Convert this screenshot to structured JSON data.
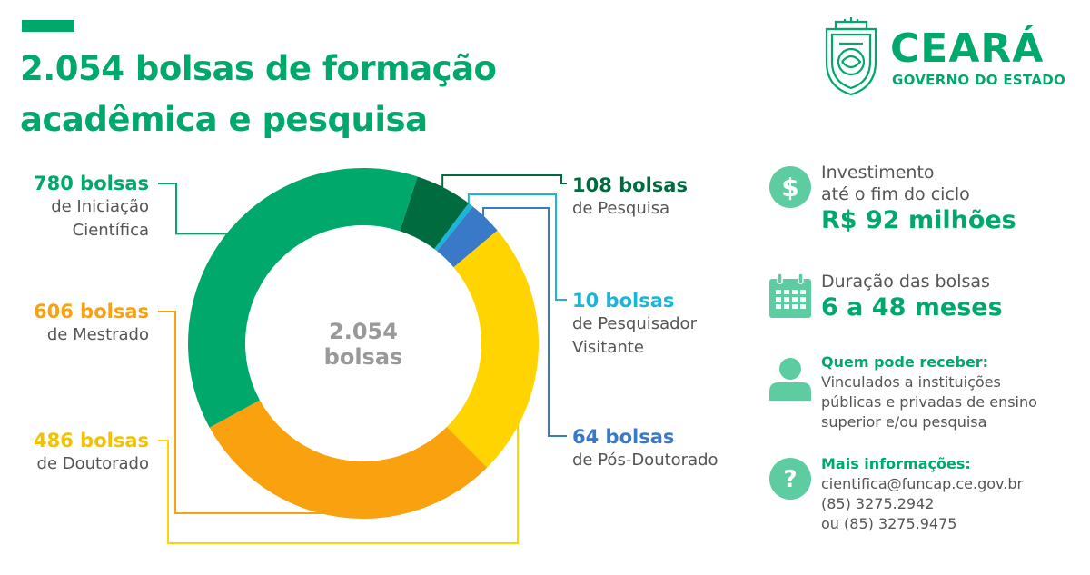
{
  "header": {
    "title_line1": "2.054 bolsas de formação",
    "title_line2": "acadêmica e pesquisa"
  },
  "brand": {
    "name": "CEARÁ",
    "subtitle": "GOVERNO DO ESTADO",
    "seal_icon": "state-coat-of-arms-icon"
  },
  "chart_data": {
    "type": "pie",
    "donut": true,
    "title": "2.054 bolsas de formação acadêmica e pesquisa",
    "center_label_value": "2.054",
    "center_label_unit": "bolsas",
    "total": 2054,
    "series": [
      {
        "count_label": "108 bolsas",
        "category": "de Pesquisa",
        "value": 108,
        "color": "#006B3F"
      },
      {
        "count_label": "10 bolsas",
        "category": "de Pesquisador Visitante",
        "value": 10,
        "color": "#1BB5D8"
      },
      {
        "count_label": "64 bolsas",
        "category": "de Pós-Doutorado",
        "value": 64,
        "color": "#3A78C8"
      },
      {
        "count_label": "486 bolsas",
        "category": "de Doutorado",
        "value": 486,
        "color": "#FFD400"
      },
      {
        "count_label": "606 bolsas",
        "category": "de Mestrado",
        "value": 606,
        "color": "#F9A10F"
      },
      {
        "count_label": "780 bolsas",
        "category": "de Iniciação Científica",
        "value": 780,
        "color": "#00A86B"
      }
    ]
  },
  "labels": {
    "iniciacao": {
      "count": "780 bolsas",
      "line1": "de Iniciação",
      "line2": "Científica"
    },
    "mestrado": {
      "count": "606 bolsas",
      "line1": "de Mestrado"
    },
    "doutorado": {
      "count": "486 bolsas",
      "line1": "de Doutorado"
    },
    "pesquisa": {
      "count": "108 bolsas",
      "line1": "de Pesquisa"
    },
    "visitante": {
      "count": "10 bolsas",
      "line1": "de Pesquisador",
      "line2": "Visitante"
    },
    "posdoc": {
      "count": "64 bolsas",
      "line1": "de Pós-Doutorado"
    }
  },
  "info": {
    "investment": {
      "icon": "dollar-icon",
      "line1": "Investimento",
      "line2": "até o fim do ciclo",
      "value": "R$ 92 milhões"
    },
    "duration": {
      "icon": "calendar-icon",
      "line1": "Duração das bolsas",
      "value": "6 a 48 meses"
    },
    "eligibility": {
      "icon": "person-icon",
      "heading": "Quem pode receber:",
      "line1": "Vinculados a instituições",
      "line2": "públicas e privadas de ensino",
      "line3": "superior e/ou pesquisa"
    },
    "contact": {
      "icon": "question-icon",
      "heading": "Mais informações:",
      "email": "cientifica@funcap.ce.gov.br",
      "phone1": "(85) 3275.2942",
      "phone2": "ou (85) 3275.9475"
    }
  },
  "colors": {
    "brand_green": "#00A86B",
    "icon_green": "#5DCCA0",
    "text_gray": "#555555",
    "center_text_gray": "#999999"
  }
}
